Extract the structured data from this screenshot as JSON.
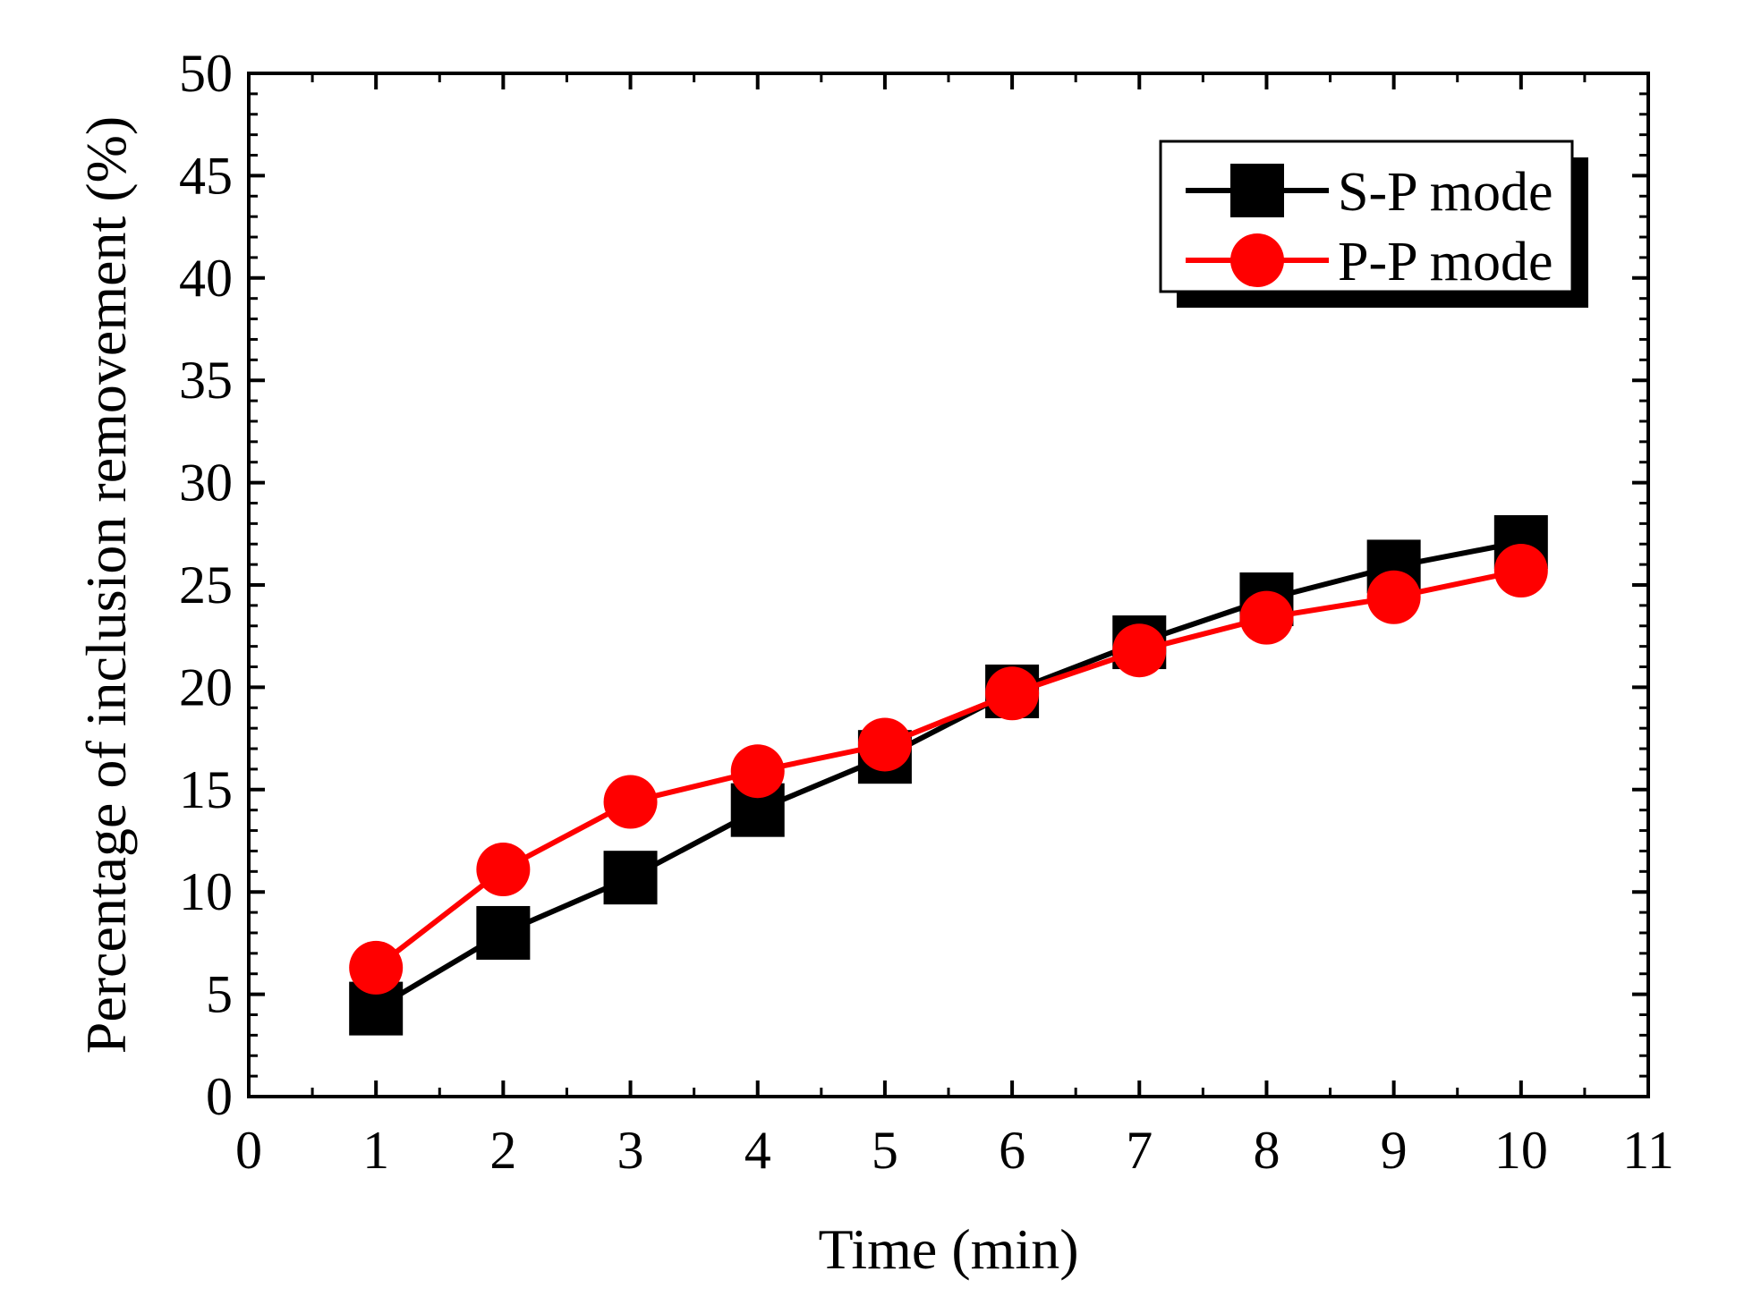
{
  "chart_data": {
    "type": "line",
    "title": "",
    "xlabel": "Time (min)",
    "ylabel": "Percentage of inclusion removement (%)",
    "xlim": [
      0,
      11
    ],
    "ylim": [
      0,
      50
    ],
    "xticks": [
      "0",
      "1",
      "2",
      "3",
      "4",
      "5",
      "6",
      "7",
      "8",
      "9",
      "10",
      "11"
    ],
    "yticks": [
      "0",
      "5",
      "10",
      "15",
      "20",
      "25",
      "30",
      "35",
      "40",
      "45",
      "50"
    ],
    "x": [
      1,
      2,
      3,
      4,
      5,
      6,
      7,
      8,
      9,
      10
    ],
    "grid": false,
    "legend_position": "top-right",
    "series": [
      {
        "name": "S-P mode",
        "color": "#000000",
        "marker": "square",
        "values": [
          4.3,
          8.0,
          10.7,
          14.0,
          16.6,
          19.8,
          22.2,
          24.3,
          25.9,
          27.1
        ]
      },
      {
        "name": "P-P mode",
        "color": "#ff0000",
        "marker": "circle",
        "values": [
          6.3,
          11.1,
          14.4,
          15.9,
          17.2,
          19.7,
          21.8,
          23.4,
          24.4,
          25.7
        ]
      }
    ]
  }
}
